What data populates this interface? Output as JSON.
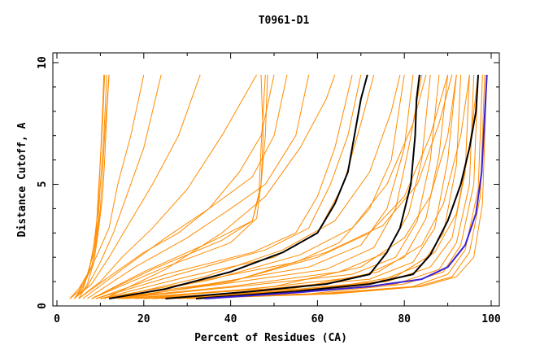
{
  "chart_data": {
    "type": "line",
    "title": "T0961-D1",
    "xlabel": "Percent of Residues (CA)",
    "ylabel": "Distance Cutoff, A",
    "xlim": [
      0,
      100
    ],
    "ylim": [
      0,
      10
    ],
    "x_ticks": [
      "0",
      "20",
      "40",
      "60",
      "80",
      "100"
    ],
    "y_ticks": [
      "0",
      "5",
      "10"
    ],
    "grid": false,
    "legend": "none",
    "colors": {
      "background_series": "#ff8c00",
      "highlight": "#000000",
      "best": "#3a1fd6"
    },
    "background_curves": [
      [
        [
          3,
          0.3
        ],
        [
          5,
          0.6
        ],
        [
          7,
          1.2
        ],
        [
          8,
          2
        ],
        [
          9,
          3
        ],
        [
          9.5,
          4.5
        ],
        [
          10,
          6
        ],
        [
          10.5,
          7.5
        ],
        [
          11,
          9.5
        ]
      ],
      [
        [
          3,
          0.3
        ],
        [
          5,
          0.7
        ],
        [
          7,
          1.3
        ],
        [
          8.5,
          2.2
        ],
        [
          9.5,
          3.5
        ],
        [
          10,
          5
        ],
        [
          10.8,
          7
        ],
        [
          11.5,
          9.5
        ]
      ],
      [
        [
          4,
          0.3
        ],
        [
          6,
          0.8
        ],
        [
          8,
          1.6
        ],
        [
          9,
          2.6
        ],
        [
          10,
          4
        ],
        [
          10.5,
          5.5
        ],
        [
          11,
          7
        ],
        [
          12,
          9.5
        ]
      ],
      [
        [
          4,
          0.3
        ],
        [
          6,
          0.7
        ],
        [
          7.5,
          1.5
        ],
        [
          8.5,
          2.5
        ],
        [
          9.5,
          4
        ],
        [
          10,
          6
        ],
        [
          10.5,
          8
        ],
        [
          10.8,
          9.5
        ]
      ],
      [
        [
          5,
          0.3
        ],
        [
          7,
          0.9
        ],
        [
          8.5,
          1.8
        ],
        [
          9.5,
          3
        ],
        [
          10.5,
          4.5
        ],
        [
          11,
          6
        ],
        [
          11.5,
          8
        ],
        [
          12,
          9.5
        ]
      ],
      [
        [
          3,
          0.3
        ],
        [
          6,
          0.9
        ],
        [
          9,
          2
        ],
        [
          12,
          3.2
        ],
        [
          14,
          5
        ],
        [
          17,
          7
        ],
        [
          20,
          9.5
        ]
      ],
      [
        [
          4,
          0.3
        ],
        [
          7,
          0.8
        ],
        [
          10,
          1.8
        ],
        [
          13,
          3
        ],
        [
          16,
          4.5
        ],
        [
          20,
          6.5
        ],
        [
          24,
          9.5
        ]
      ],
      [
        [
          4,
          0.3
        ],
        [
          8,
          0.9
        ],
        [
          12,
          2
        ],
        [
          16,
          3.2
        ],
        [
          22,
          5
        ],
        [
          28,
          7
        ],
        [
          33,
          9.5
        ]
      ],
      [
        [
          5,
          0.3
        ],
        [
          10,
          1
        ],
        [
          15,
          2
        ],
        [
          22,
          3.2
        ],
        [
          30,
          4.8
        ],
        [
          38,
          7
        ],
        [
          46,
          9.5
        ]
      ],
      [
        [
          5,
          0.3
        ],
        [
          12,
          1.2
        ],
        [
          20,
          2.2
        ],
        [
          28,
          3
        ],
        [
          35,
          4
        ],
        [
          42,
          5.5
        ],
        [
          47,
          7
        ],
        [
          50,
          9.5
        ]
      ],
      [
        [
          6,
          0.3
        ],
        [
          15,
          1.5
        ],
        [
          25,
          2.8
        ],
        [
          35,
          4
        ],
        [
          45,
          5.3
        ],
        [
          50,
          7
        ],
        [
          53,
          9.5
        ]
      ],
      [
        [
          7,
          0.3
        ],
        [
          18,
          1.6
        ],
        [
          30,
          2.8
        ],
        [
          40,
          4
        ],
        [
          48,
          5
        ],
        [
          55,
          7
        ],
        [
          58,
          9.5
        ]
      ],
      [
        [
          8,
          0.3
        ],
        [
          20,
          1.4
        ],
        [
          35,
          2.6
        ],
        [
          45,
          3.5
        ],
        [
          47,
          5
        ],
        [
          48,
          7
        ],
        [
          48.5,
          9.5
        ]
      ],
      [
        [
          8,
          0.3
        ],
        [
          22,
          1.5
        ],
        [
          38,
          2.7
        ],
        [
          45,
          3.5
        ],
        [
          46.5,
          4.5
        ],
        [
          47,
          6.5
        ],
        [
          48,
          9.5
        ]
      ],
      [
        [
          8,
          0.3
        ],
        [
          25,
          1.6
        ],
        [
          40,
          2.6
        ],
        [
          46,
          3.6
        ],
        [
          47,
          5
        ],
        [
          47.5,
          7
        ],
        [
          47,
          9.5
        ]
      ],
      [
        [
          9,
          0.3
        ],
        [
          25,
          1.3
        ],
        [
          45,
          2.2
        ],
        [
          55,
          3
        ],
        [
          60,
          4.5
        ],
        [
          64,
          6.5
        ],
        [
          68,
          9.5
        ]
      ],
      [
        [
          9,
          0.3
        ],
        [
          28,
          1.3
        ],
        [
          48,
          2.3
        ],
        [
          58,
          3.2
        ],
        [
          63,
          5
        ],
        [
          67,
          7
        ],
        [
          70,
          9.5
        ]
      ],
      [
        [
          10,
          0.3
        ],
        [
          30,
          1.2
        ],
        [
          50,
          2
        ],
        [
          60,
          3
        ],
        [
          66,
          5
        ],
        [
          70,
          7.5
        ],
        [
          73,
          9.5
        ]
      ],
      [
        [
          10,
          0.3
        ],
        [
          32,
          1
        ],
        [
          55,
          1.8
        ],
        [
          65,
          2.6
        ],
        [
          72,
          4
        ],
        [
          77,
          6
        ],
        [
          80,
          9.5
        ]
      ],
      [
        [
          10,
          0.3
        ],
        [
          35,
          0.9
        ],
        [
          58,
          1.6
        ],
        [
          70,
          2.5
        ],
        [
          76,
          4
        ],
        [
          80,
          6.5
        ],
        [
          82,
          9.5
        ]
      ],
      [
        [
          12,
          0.3
        ],
        [
          38,
          0.9
        ],
        [
          62,
          1.5
        ],
        [
          73,
          2.4
        ],
        [
          78,
          4
        ],
        [
          81,
          6.5
        ],
        [
          84,
          9.5
        ]
      ],
      [
        [
          12,
          0.3
        ],
        [
          40,
          0.8
        ],
        [
          65,
          1.4
        ],
        [
          76,
          2.2
        ],
        [
          81,
          3.8
        ],
        [
          84,
          6
        ],
        [
          86,
          9.5
        ]
      ],
      [
        [
          14,
          0.3
        ],
        [
          42,
          0.8
        ],
        [
          68,
          1.3
        ],
        [
          78,
          2
        ],
        [
          83,
          3.5
        ],
        [
          86,
          6
        ],
        [
          88,
          9.5
        ]
      ],
      [
        [
          15,
          0.3
        ],
        [
          45,
          0.7
        ],
        [
          70,
          1.2
        ],
        [
          80,
          2
        ],
        [
          85,
          3.6
        ],
        [
          88,
          6.2
        ],
        [
          90,
          9.5
        ]
      ],
      [
        [
          16,
          0.3
        ],
        [
          48,
          0.7
        ],
        [
          72,
          1.1
        ],
        [
          82,
          1.8
        ],
        [
          87,
          3.2
        ],
        [
          90,
          6
        ],
        [
          92,
          9.5
        ]
      ],
      [
        [
          18,
          0.3
        ],
        [
          50,
          0.6
        ],
        [
          74,
          1
        ],
        [
          84,
          1.7
        ],
        [
          89,
          3
        ],
        [
          92,
          5.8
        ],
        [
          93,
          9.5
        ]
      ],
      [
        [
          20,
          0.3
        ],
        [
          52,
          0.6
        ],
        [
          76,
          1
        ],
        [
          86,
          1.6
        ],
        [
          91,
          2.8
        ],
        [
          94,
          5.5
        ],
        [
          95,
          9.5
        ]
      ],
      [
        [
          22,
          0.3
        ],
        [
          55,
          0.6
        ],
        [
          78,
          0.9
        ],
        [
          88,
          1.5
        ],
        [
          92,
          2.6
        ],
        [
          95,
          5
        ],
        [
          96,
          9.5
        ]
      ],
      [
        [
          24,
          0.3
        ],
        [
          58,
          0.5
        ],
        [
          80,
          0.9
        ],
        [
          89,
          1.4
        ],
        [
          93,
          2.5
        ],
        [
          96,
          5
        ],
        [
          97,
          9.5
        ]
      ],
      [
        [
          26,
          0.3
        ],
        [
          60,
          0.5
        ],
        [
          82,
          0.8
        ],
        [
          90,
          1.3
        ],
        [
          94,
          2.3
        ],
        [
          97,
          4.8
        ],
        [
          98,
          9.5
        ]
      ],
      [
        [
          28,
          0.3
        ],
        [
          62,
          0.5
        ],
        [
          83,
          0.8
        ],
        [
          91,
          1.2
        ],
        [
          95,
          2.2
        ],
        [
          97.5,
          4.5
        ],
        [
          98.5,
          9.5
        ]
      ],
      [
        [
          30,
          0.3
        ],
        [
          64,
          0.5
        ],
        [
          84,
          0.8
        ],
        [
          92,
          1.2
        ],
        [
          96,
          2
        ],
        [
          98,
          4.2
        ],
        [
          99,
          9.5
        ]
      ],
      [
        [
          14,
          0.3
        ],
        [
          40,
          1
        ],
        [
          60,
          2
        ],
        [
          72,
          3
        ],
        [
          80,
          4.5
        ],
        [
          86,
          7
        ],
        [
          90,
          9.5
        ]
      ],
      [
        [
          15,
          0.3
        ],
        [
          42,
          1.1
        ],
        [
          62,
          2.2
        ],
        [
          75,
          3.3
        ],
        [
          83,
          5
        ],
        [
          88,
          7.5
        ],
        [
          91,
          9.5
        ]
      ],
      [
        [
          13,
          0.3
        ],
        [
          36,
          1.1
        ],
        [
          56,
          2.1
        ],
        [
          68,
          3.2
        ],
        [
          76,
          5
        ],
        [
          82,
          7.5
        ],
        [
          85,
          9.5
        ]
      ],
      [
        [
          12,
          0.3
        ],
        [
          34,
          1.2
        ],
        [
          52,
          2.3
        ],
        [
          64,
          3.5
        ],
        [
          72,
          5.5
        ],
        [
          77,
          8
        ],
        [
          79,
          9.5
        ]
      ],
      [
        [
          20,
          0.3
        ],
        [
          50,
          0.8
        ],
        [
          70,
          1.6
        ],
        [
          80,
          2.8
        ],
        [
          86,
          4.5
        ],
        [
          90,
          7
        ],
        [
          92,
          9.5
        ]
      ],
      [
        [
          22,
          0.3
        ],
        [
          54,
          0.7
        ],
        [
          74,
          1.4
        ],
        [
          84,
          2.5
        ],
        [
          89,
          4.2
        ],
        [
          93,
          7
        ],
        [
          95,
          9.5
        ]
      ],
      [
        [
          25,
          0.3
        ],
        [
          58,
          0.6
        ],
        [
          78,
          1.2
        ],
        [
          87,
          2.2
        ],
        [
          92,
          3.8
        ],
        [
          95,
          6.5
        ],
        [
          97,
          9.5
        ]
      ],
      [
        [
          11,
          0.3
        ],
        [
          25,
          1.5
        ],
        [
          38,
          3
        ],
        [
          48,
          4.5
        ],
        [
          56,
          6.5
        ],
        [
          62,
          8.5
        ],
        [
          64,
          9.5
        ]
      ]
    ],
    "highlight_curves": [
      [
        [
          12,
          0.3
        ],
        [
          25,
          0.7
        ],
        [
          40,
          1.4
        ],
        [
          52,
          2.2
        ],
        [
          60,
          3
        ],
        [
          64,
          4.2
        ],
        [
          67,
          5.5
        ],
        [
          68.5,
          7
        ],
        [
          70,
          8.5
        ],
        [
          71.5,
          9.5
        ]
      ],
      [
        [
          25,
          0.3
        ],
        [
          45,
          0.6
        ],
        [
          62,
          0.9
        ],
        [
          72,
          1.3
        ],
        [
          76,
          2.2
        ],
        [
          79,
          3.2
        ],
        [
          81.5,
          5
        ],
        [
          82.5,
          7
        ],
        [
          82.8,
          8.5
        ],
        [
          83.5,
          9.5
        ]
      ],
      [
        [
          32,
          0.3
        ],
        [
          55,
          0.6
        ],
        [
          72,
          0.9
        ],
        [
          82,
          1.3
        ],
        [
          86,
          2.1
        ],
        [
          90,
          3.5
        ],
        [
          93,
          5
        ],
        [
          95,
          6.5
        ],
        [
          96.5,
          8
        ],
        [
          97,
          9.5
        ]
      ]
    ],
    "best_curve": [
      [
        34,
        0.3
      ],
      [
        55,
        0.55
      ],
      [
        72,
        0.8
      ],
      [
        84,
        1.1
      ],
      [
        90,
        1.6
      ],
      [
        94,
        2.5
      ],
      [
        96.5,
        3.8
      ],
      [
        97.8,
        5.5
      ],
      [
        98.4,
        7.5
      ],
      [
        99,
        9.5
      ]
    ]
  }
}
